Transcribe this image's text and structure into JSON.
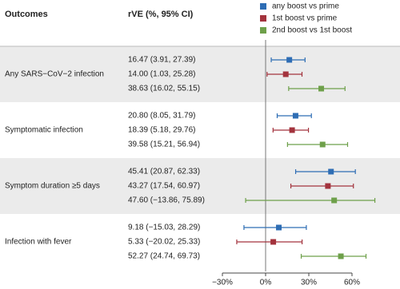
{
  "chart_data": {
    "type": "forest",
    "column_headers": [
      "Outcomes",
      "rVE (%, 95% CI)"
    ],
    "categories": [
      "Any SARS−CoV−2 infection",
      "Symptomatic infection",
      "Symptom duration ≥5 days",
      "Infection with fever"
    ],
    "series": [
      {
        "name": "any boost vs prime",
        "color": "#2e6db4",
        "values": [
          16.47,
          20.8,
          45.41,
          9.18
        ],
        "lower": [
          3.91,
          8.05,
          20.87,
          -15.03
        ],
        "upper": [
          27.39,
          31.79,
          62.33,
          28.29
        ],
        "value_labels": [
          "16.47 (3.91, 27.39)",
          "20.80 (8.05, 31.79)",
          "45.41 (20.87, 62.33)",
          "9.18 (−15.03, 28.29)"
        ]
      },
      {
        "name": "1st boost vs prime",
        "color": "#a3333d",
        "values": [
          14.0,
          18.39,
          43.27,
          5.33
        ],
        "lower": [
          1.03,
          5.18,
          17.54,
          -20.02
        ],
        "upper": [
          25.28,
          29.76,
          60.97,
          25.33
        ],
        "value_labels": [
          "14.00 (1.03, 25.28)",
          "18.39 (5.18, 29.76)",
          "43.27 (17.54, 60.97)",
          "5.33 (−20.02, 25.33)"
        ]
      },
      {
        "name": "2nd boost vs 1st boost",
        "color": "#6ea04a",
        "values": [
          38.63,
          39.58,
          47.6,
          52.27
        ],
        "lower": [
          16.02,
          15.21,
          -13.86,
          24.74
        ],
        "upper": [
          55.15,
          56.94,
          75.89,
          69.73
        ],
        "value_labels": [
          "38.63 (16.02, 55.15)",
          "39.58 (15.21, 56.94)",
          "47.60 (−13.86, 75.89)",
          "52.27 (24.74, 69.73)"
        ]
      }
    ],
    "xlim": [
      -35,
      85
    ],
    "xticks": [
      {
        "value": -30,
        "label": "−30%"
      },
      {
        "value": 0,
        "label": "0%"
      },
      {
        "value": 30,
        "label": "30%"
      },
      {
        "value": 60,
        "label": "60%"
      }
    ],
    "reference_line": 0,
    "legend": "top-right"
  }
}
